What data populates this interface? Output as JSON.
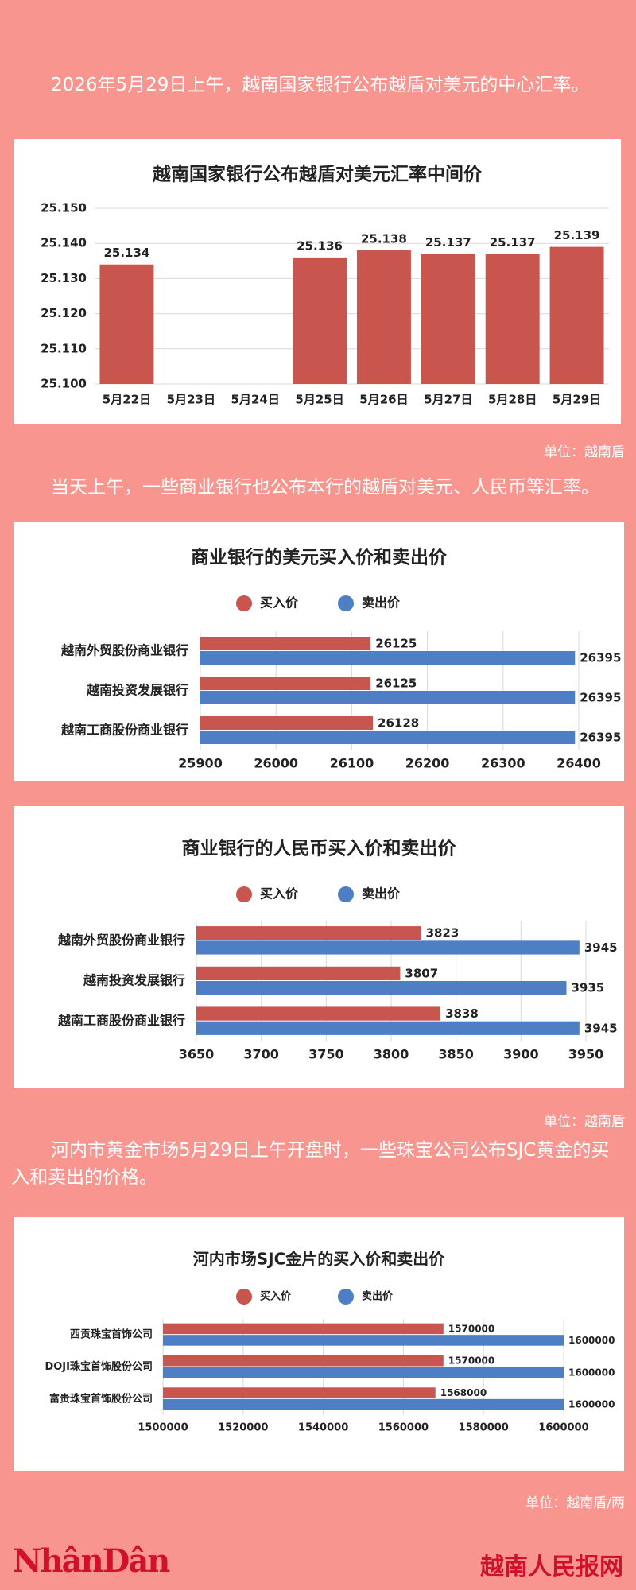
{
  "paragraphs": [
    "2026年5月29日上午，越南国家银行公布越盾对美元的中心汇率。",
    "当天上午，一些商业银行也公布本行的越盾对美元、人民币等汇率。",
    "河内市黄金市场5月29日上午开盘时，一些珠宝公司公布SJC黄金的买入和卖出的价格。"
  ],
  "units": [
    "单位：越南盾",
    "单位：越南盾",
    "单位：越南盾/两"
  ],
  "footer": {
    "logo": "NhânDân",
    "site": "越南人民报网"
  },
  "chart_data": [
    {
      "type": "bar",
      "title": "越南国家银行公布越盾对美元汇率中间价",
      "categories": [
        "5月22日",
        "5月23日",
        "5月24日",
        "5月25日",
        "5月26日",
        "5月27日",
        "5月28日",
        "5月29日"
      ],
      "values": [
        25.134,
        null,
        null,
        25.136,
        25.138,
        25.137,
        25.137,
        25.139
      ],
      "color": "#c8554e",
      "ylim": [
        25.1,
        25.15
      ],
      "yticks": [
        {
          "value": 25.1,
          "label": "25.100"
        },
        {
          "value": 25.11,
          "label": "25.110"
        },
        {
          "value": 25.12,
          "label": "25.120"
        },
        {
          "value": 25.13,
          "label": "25.130"
        },
        {
          "value": 25.14,
          "label": "25.140"
        },
        {
          "value": 25.15,
          "label": "25.150"
        }
      ],
      "grid": true
    },
    {
      "type": "barh",
      "title": "商业银行的美元买入价和卖出价",
      "legend": "top",
      "categories": [
        "越南外贸股份商业银行",
        "越南投资发展银行",
        "越南工商股份商业银行"
      ],
      "series": [
        {
          "name": "买入价",
          "color": "#c8554e",
          "values": [
            26125,
            26125,
            26128
          ]
        },
        {
          "name": "卖出价",
          "color": "#4e7fc4",
          "values": [
            26395,
            26395,
            26395
          ]
        }
      ],
      "xlim": [
        25900,
        26400
      ],
      "xticks": [
        25900,
        26000,
        26100,
        26200,
        26300,
        26400
      ],
      "grid": true
    },
    {
      "type": "barh",
      "title": "商业银行的人民币买入价和卖出价",
      "legend": "top",
      "categories": [
        "越南外贸股份商业银行",
        "越南投资发展银行",
        "越南工商股份商业银行"
      ],
      "series": [
        {
          "name": "买入价",
          "color": "#c8554e",
          "values": [
            3823,
            3807,
            3838
          ]
        },
        {
          "name": "卖出价",
          "color": "#4e7fc4",
          "values": [
            3945,
            3935,
            3945
          ]
        }
      ],
      "xlim": [
        3650,
        3950
      ],
      "xticks": [
        3650,
        3700,
        3750,
        3800,
        3850,
        3900,
        3950
      ],
      "grid": true
    },
    {
      "type": "barh",
      "title": "河内市场SJC金片的买入价和卖出价",
      "legend": "top",
      "categories": [
        "西贡珠宝首饰公司",
        "DOJI珠宝首饰股份公司",
        "富贵珠宝首饰股份公司"
      ],
      "series": [
        {
          "name": "买入价",
          "color": "#c8554e",
          "values": [
            1570000,
            1570000,
            1568000
          ]
        },
        {
          "name": "卖出价",
          "color": "#4e7fc4",
          "values": [
            1600000,
            1600000,
            1600000
          ]
        }
      ],
      "xlim": [
        1500000,
        1600000
      ],
      "xticks": [
        1500000,
        1520000,
        1540000,
        1560000,
        1580000,
        1600000
      ],
      "grid": true
    }
  ]
}
